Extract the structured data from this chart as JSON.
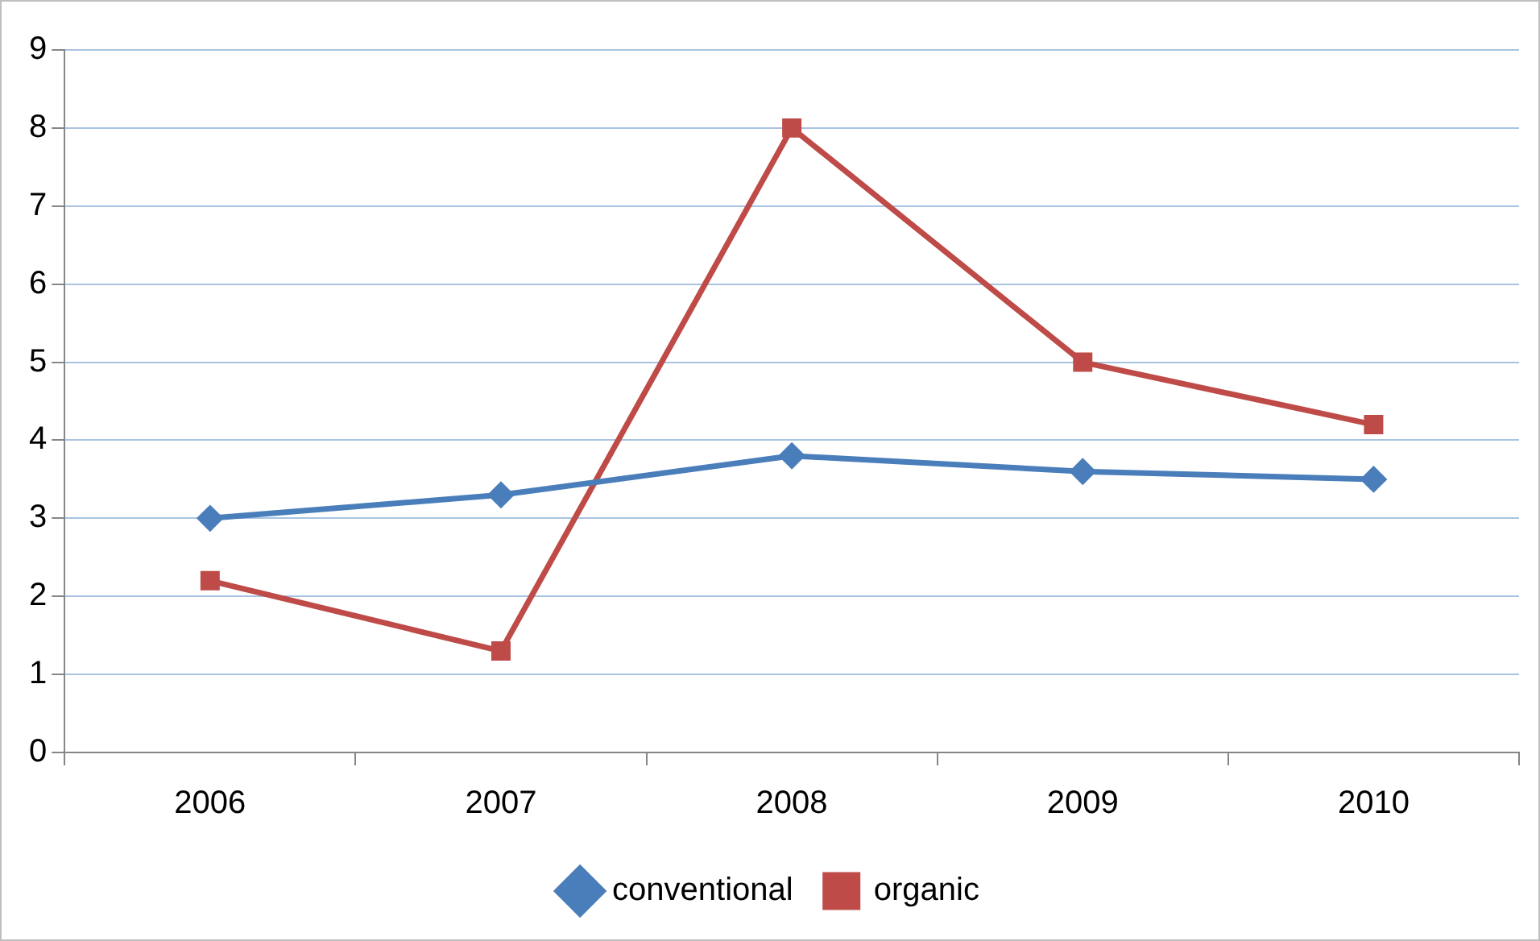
{
  "chart_data": {
    "type": "line",
    "categories": [
      "2006",
      "2007",
      "2008",
      "2009",
      "2010"
    ],
    "series": [
      {
        "name": "conventional",
        "color": "#4a7ebb",
        "marker": "diamond",
        "values": [
          3.0,
          3.3,
          3.8,
          3.6,
          3.5
        ]
      },
      {
        "name": "organic",
        "color": "#be4b48",
        "marker": "square",
        "values": [
          2.2,
          1.3,
          8.0,
          5.0,
          4.2
        ]
      }
    ],
    "ylim": [
      0,
      9
    ],
    "yticks": [
      0,
      1,
      2,
      3,
      4,
      5,
      6,
      7,
      8,
      9
    ],
    "grid": "y",
    "legend": "bottom",
    "line_style": "solid"
  }
}
